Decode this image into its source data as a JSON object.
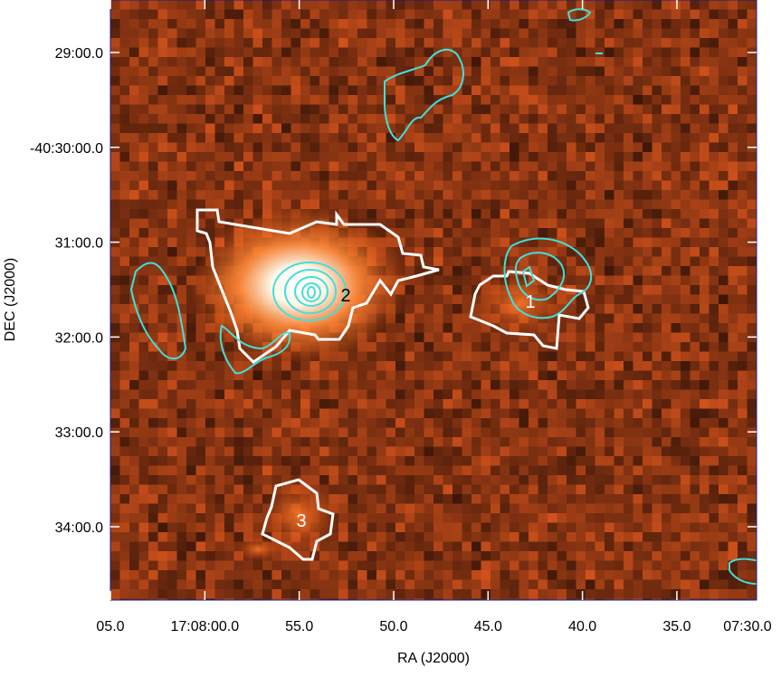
{
  "chart_data": {
    "type": "image",
    "x_label": "RA (J2000)",
    "y_label": "DEC (J2000)",
    "xlim": [
      61685,
      61650.78
    ],
    "ylim": [
      -146086.4,
      -145706.8
    ],
    "xticks": [
      {
        "value": 61685,
        "label": "05.0"
      },
      {
        "value": 61680,
        "label": "17:08:00.0"
      },
      {
        "value": 61675,
        "label": "55.0"
      },
      {
        "value": 61670,
        "label": "50.0"
      },
      {
        "value": 61665,
        "label": "45.0"
      },
      {
        "value": 61660,
        "label": "40.0"
      },
      {
        "value": 61655,
        "label": "35.0"
      },
      {
        "value": 61650,
        "label": "07:30.0"
      }
    ],
    "yticks": [
      {
        "value": -145740,
        "label": "29:00.0"
      },
      {
        "value": -145800,
        "label": "-40:30:00.0"
      },
      {
        "value": -145860,
        "label": "31:00.0"
      },
      {
        "value": -145920,
        "label": "32:00.0"
      },
      {
        "value": -145980,
        "label": "33:00.0"
      },
      {
        "value": -146040,
        "label": "34:00.0"
      }
    ],
    "annotations": [
      {
        "text": "1"
      },
      {
        "text": "2"
      },
      {
        "text": "3"
      }
    ]
  }
}
